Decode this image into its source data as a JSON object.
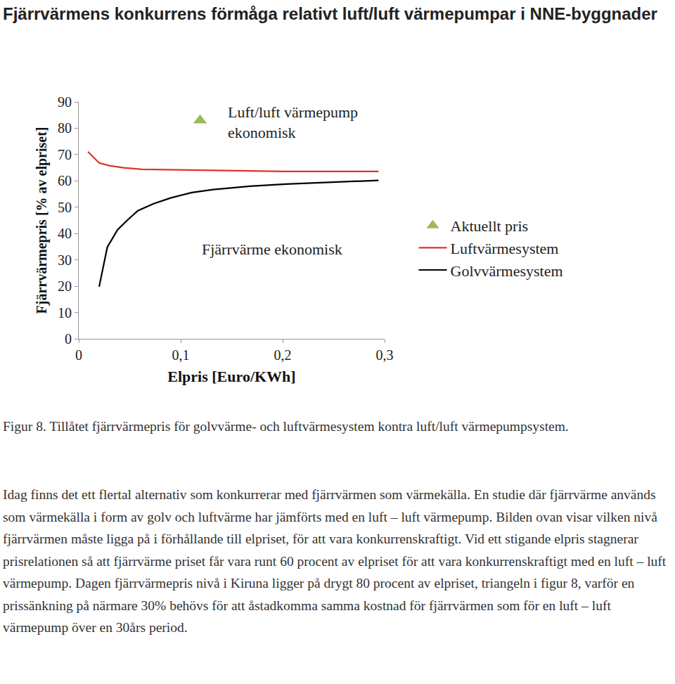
{
  "heading": "Fjärrvärmens konkurrens förmåga relativt luft/luft värmepumpar i NNE-byggnader",
  "chart_data": {
    "type": "line",
    "x_label": "Elpris [Euro/KWh]",
    "y_label": "Fjärrvärmepris [% av elpriset]",
    "xlim": [
      0,
      0.3
    ],
    "xticks": [
      0,
      {
        "value": 0.1,
        "label": "0,1"
      },
      {
        "value": 0.2,
        "label": "0,2"
      },
      {
        "value": 0.3,
        "label": "0,3"
      }
    ],
    "ylim": [
      0,
      90
    ],
    "yticks": [
      0,
      10,
      20,
      30,
      40,
      50,
      60,
      70,
      80,
      90
    ],
    "grid": false,
    "legend": "right",
    "annotations": [
      "Luft/luft värmepump\nekonomisk",
      "Fjärrvärme ekonomisk"
    ],
    "series": [
      {
        "name": "Aktuellt pris",
        "type": "scatter",
        "marker": "triangle-up",
        "color": "#9bbb59",
        "x": [
          0.119
        ],
        "values": [
          83
        ]
      },
      {
        "name": "Luftvärmesystem",
        "type": "line",
        "color": "#e0332b",
        "x": [
          0.009,
          0.02,
          0.03,
          0.044,
          0.062,
          0.097,
          0.132,
          0.203,
          0.294
        ],
        "values": [
          71.1,
          66.8,
          65.8,
          65,
          64.4,
          64.2,
          63.9,
          63.6,
          63.6
        ]
      },
      {
        "name": "Golvvärmesystem",
        "type": "line",
        "color": "#000000",
        "x": [
          0.02,
          0.028,
          0.038,
          0.048,
          0.058,
          0.073,
          0.09,
          0.111,
          0.132,
          0.168,
          0.203,
          0.238,
          0.294
        ],
        "values": [
          19.8,
          34.8,
          41.4,
          45.2,
          48.7,
          51.3,
          53.5,
          55.6,
          56.7,
          58,
          58.8,
          59.4,
          60.2
        ]
      }
    ]
  },
  "caption": "Figur 8. Tillåtet fjärrvärmepris för golvvärme- och luftvärmesystem kontra luft/luft värmepumpsystem.",
  "paragraph": "Idag finns det ett flertal alternativ som konkurrerar med fjärrvärmen som värmekälla. En studie där fjärrvärme används som värmekälla i form av golv och luftvärme har jämförts med en luft – luft värmepump. Bilden ovan visar vilken nivå fjärrvärmen måste ligga på i förhållande till elpriset, för att vara konkurrenskraftigt. Vid ett stigande elpris stagnerar prisrelationen så att fjärrvärme priset får vara runt 60 procent av elpriset för att vara konkurrenskraftigt med en luft – luft värmepump. Dagen fjärrvärmepris nivå i Kiruna ligger på drygt 80 procent av elpriset, triangeln i figur 8, varför en prissänkning på närmare 30% behövs för att åstadkomma samma kostnad för fjärrvärmen som för en luft – luft värmepump över en 30års period."
}
